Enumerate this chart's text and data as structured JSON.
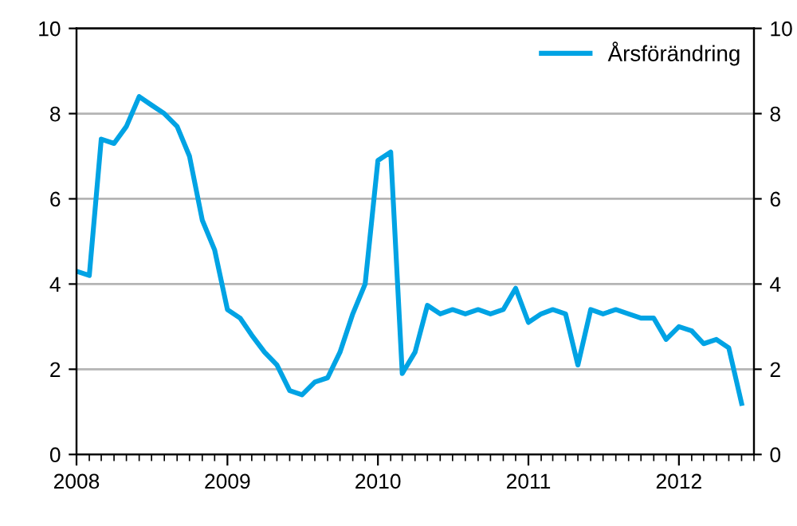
{
  "chart_data": {
    "type": "line",
    "x": [
      "2008-01",
      "2008-02",
      "2008-03",
      "2008-04",
      "2008-05",
      "2008-06",
      "2008-07",
      "2008-08",
      "2008-09",
      "2008-10",
      "2008-11",
      "2008-12",
      "2009-01",
      "2009-02",
      "2009-03",
      "2009-04",
      "2009-05",
      "2009-06",
      "2009-07",
      "2009-08",
      "2009-09",
      "2009-10",
      "2009-11",
      "2009-12",
      "2010-01",
      "2010-02",
      "2010-03",
      "2010-04",
      "2010-05",
      "2010-06",
      "2010-07",
      "2010-08",
      "2010-09",
      "2010-10",
      "2010-11",
      "2010-12",
      "2011-01",
      "2011-02",
      "2011-03",
      "2011-04",
      "2011-05",
      "2011-06",
      "2011-07",
      "2011-08",
      "2011-09",
      "2011-10",
      "2011-11",
      "2011-12",
      "2012-01",
      "2012-02",
      "2012-03",
      "2012-04",
      "2012-05",
      "2012-06"
    ],
    "series": [
      {
        "name": "Årsförändring",
        "color": "#00a3e4",
        "values": [
          4.3,
          4.2,
          7.4,
          7.3,
          7.7,
          8.4,
          8.2,
          8.0,
          7.7,
          7.0,
          5.5,
          4.8,
          3.4,
          3.2,
          2.8,
          2.4,
          2.1,
          1.5,
          1.4,
          1.7,
          1.8,
          2.4,
          3.3,
          4.0,
          6.9,
          7.1,
          1.9,
          2.4,
          3.5,
          3.3,
          3.4,
          3.3,
          3.4,
          3.3,
          3.4,
          3.9,
          3.1,
          3.3,
          3.4,
          3.3,
          2.1,
          3.4,
          3.3,
          3.4,
          3.3,
          3.2,
          3.2,
          2.7,
          3.0,
          2.9,
          2.6,
          2.7,
          2.5,
          1.2
        ]
      }
    ],
    "xlim": [
      "2008-01",
      "2012-07"
    ],
    "xticks": [
      {
        "value": "2008-01",
        "label": "2008"
      },
      {
        "value": "2009-01",
        "label": "2009"
      },
      {
        "value": "2010-01",
        "label": "2010"
      },
      {
        "value": "2011-01",
        "label": "2011"
      },
      {
        "value": "2012-01",
        "label": "2012"
      }
    ],
    "ylim": [
      0,
      10
    ],
    "yticks": [
      0,
      2,
      4,
      6,
      8,
      10
    ],
    "y2lim": [
      0,
      10
    ],
    "y2ticks": [
      0,
      2,
      4,
      6,
      8,
      10
    ],
    "grid": "y",
    "legend": "top right",
    "marker": "none",
    "line_style": "solid"
  }
}
